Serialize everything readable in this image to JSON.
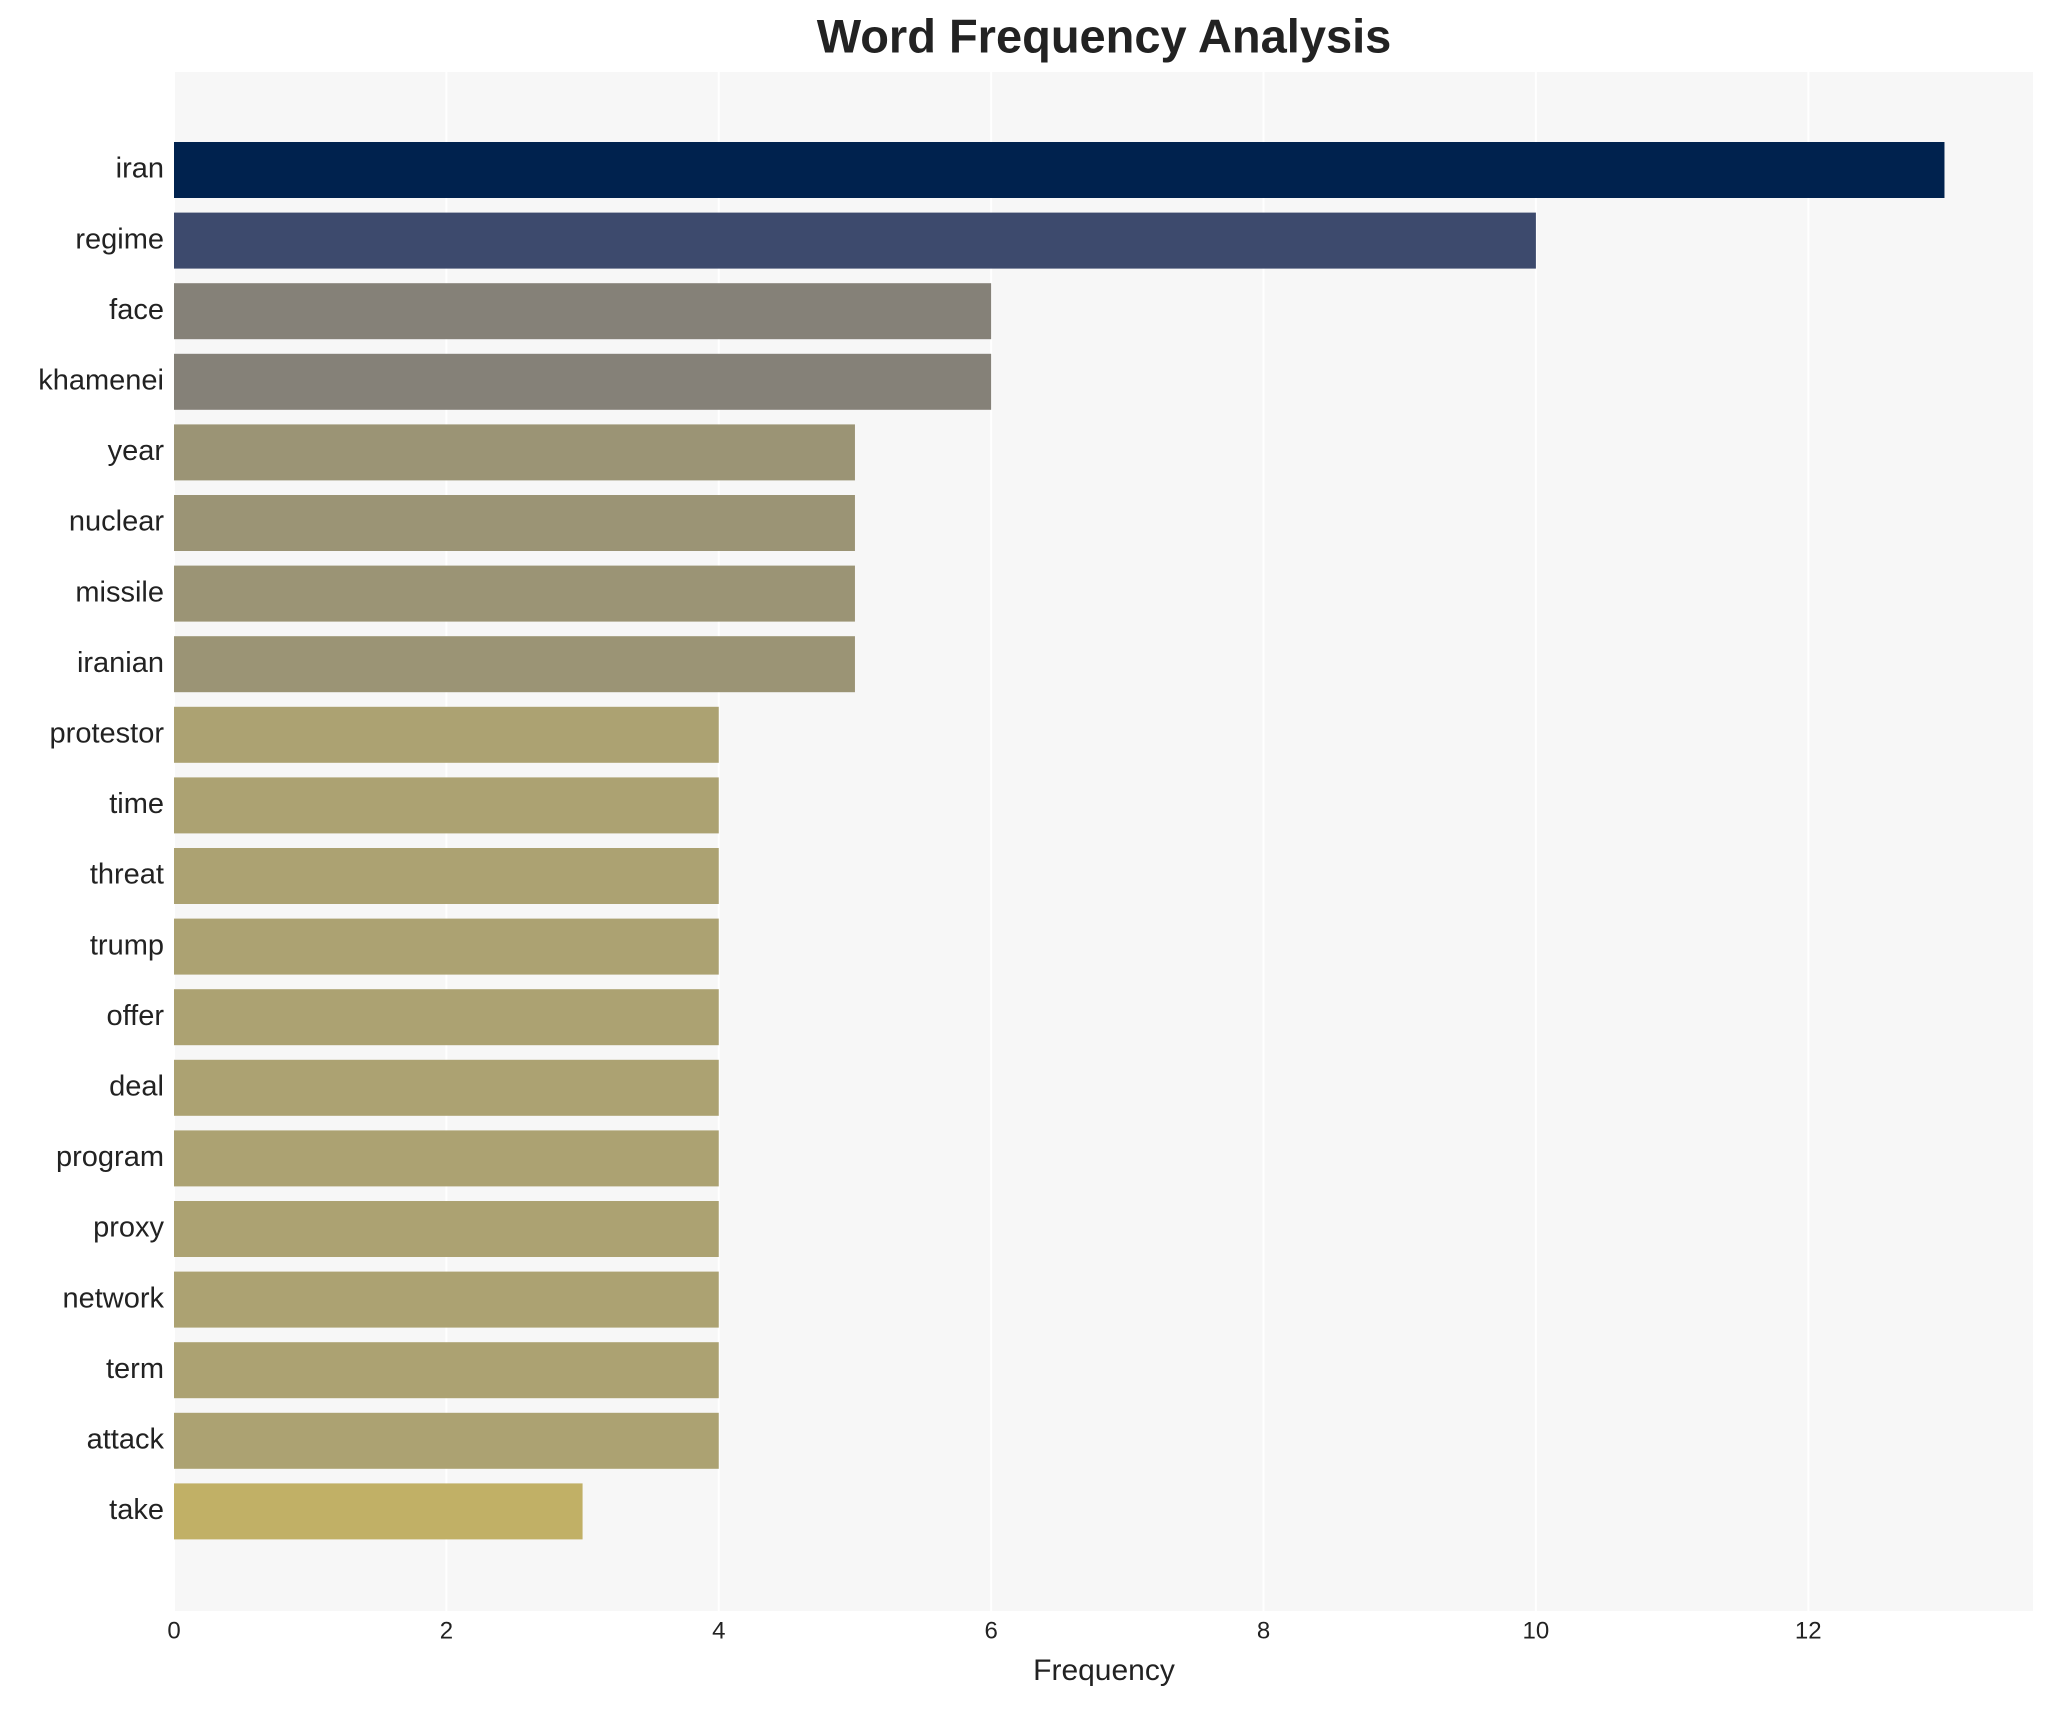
{
  "chart_data": {
    "type": "barh",
    "title": "Word Frequency Analysis",
    "xlabel": "Frequency",
    "categories": [
      "iran",
      "regime",
      "face",
      "khamenei",
      "year",
      "nuclear",
      "missile",
      "iranian",
      "protestor",
      "time",
      "threat",
      "trump",
      "offer",
      "deal",
      "program",
      "proxy",
      "network",
      "term",
      "attack",
      "take"
    ],
    "values": [
      13,
      10,
      6,
      6,
      5,
      5,
      5,
      5,
      4,
      4,
      4,
      4,
      4,
      4,
      4,
      4,
      4,
      4,
      4,
      3
    ],
    "colors": [
      "#00224e",
      "#3d4a6d",
      "#858178",
      "#858178",
      "#9b9475",
      "#9b9475",
      "#9b9475",
      "#9b9475",
      "#aca272",
      "#aca272",
      "#aca272",
      "#aca272",
      "#aca272",
      "#aca272",
      "#aca272",
      "#aca272",
      "#aca272",
      "#aca272",
      "#aca272",
      "#c1b066"
    ],
    "xlim": [
      0,
      13.65
    ],
    "xticks": [
      0,
      2,
      4,
      6,
      8,
      10,
      12
    ],
    "grid": true
  }
}
